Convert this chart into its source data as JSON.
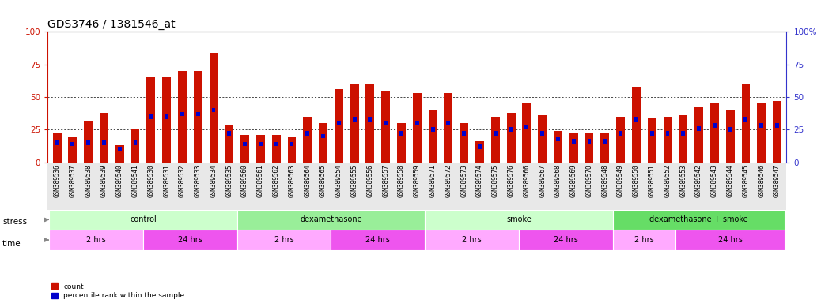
{
  "title": "GDS3746 / 1381546_at",
  "samples": [
    "GSM389536",
    "GSM389537",
    "GSM389538",
    "GSM389539",
    "GSM389540",
    "GSM389541",
    "GSM389530",
    "GSM389531",
    "GSM389532",
    "GSM389533",
    "GSM389534",
    "GSM389535",
    "GSM389560",
    "GSM389561",
    "GSM389562",
    "GSM389563",
    "GSM389564",
    "GSM389565",
    "GSM389554",
    "GSM389555",
    "GSM389556",
    "GSM389557",
    "GSM389558",
    "GSM389559",
    "GSM389571",
    "GSM389572",
    "GSM389573",
    "GSM389574",
    "GSM389575",
    "GSM389576",
    "GSM389566",
    "GSM389567",
    "GSM389568",
    "GSM389569",
    "GSM389570",
    "GSM389548",
    "GSM389549",
    "GSM389550",
    "GSM389551",
    "GSM389552",
    "GSM389553",
    "GSM389542",
    "GSM389543",
    "GSM389544",
    "GSM389545",
    "GSM389546",
    "GSM389547"
  ],
  "count_values": [
    22,
    20,
    32,
    38,
    13,
    26,
    65,
    65,
    70,
    70,
    84,
    29,
    21,
    21,
    21,
    20,
    35,
    30,
    56,
    60,
    60,
    55,
    30,
    53,
    40,
    53,
    30,
    16,
    35,
    38,
    45,
    36,
    24,
    22,
    22,
    22,
    35,
    58,
    34,
    35,
    36,
    42,
    46,
    40,
    60,
    46,
    47
  ],
  "percentile_values": [
    15,
    14,
    15,
    15,
    10,
    15,
    35,
    35,
    37,
    37,
    40,
    22,
    14,
    14,
    14,
    14,
    22,
    20,
    30,
    33,
    33,
    30,
    22,
    30,
    25,
    30,
    22,
    12,
    22,
    25,
    27,
    22,
    18,
    16,
    16,
    16,
    22,
    33,
    22,
    22,
    22,
    26,
    28,
    25,
    33,
    28,
    28
  ],
  "bar_color": "#cc1100",
  "percentile_color": "#0000cc",
  "background_color": "#ffffff",
  "ylim": [
    0,
    100
  ],
  "yticks": [
    0,
    25,
    50,
    75,
    100
  ],
  "stress_groups": [
    {
      "label": "control",
      "start": 0,
      "end": 12,
      "color": "#ccffcc"
    },
    {
      "label": "dexamethasone",
      "start": 12,
      "end": 24,
      "color": "#99ee99"
    },
    {
      "label": "smoke",
      "start": 24,
      "end": 36,
      "color": "#ccffcc"
    },
    {
      "label": "dexamethasone + smoke",
      "start": 36,
      "end": 47,
      "color": "#66dd66"
    }
  ],
  "time_groups": [
    {
      "label": "2 hrs",
      "start": 0,
      "end": 6,
      "color": "#ffaaff"
    },
    {
      "label": "24 hrs",
      "start": 6,
      "end": 12,
      "color": "#ee55ee"
    },
    {
      "label": "2 hrs",
      "start": 12,
      "end": 18,
      "color": "#ffaaff"
    },
    {
      "label": "24 hrs",
      "start": 18,
      "end": 24,
      "color": "#ee55ee"
    },
    {
      "label": "2 hrs",
      "start": 24,
      "end": 30,
      "color": "#ffaaff"
    },
    {
      "label": "24 hrs",
      "start": 30,
      "end": 36,
      "color": "#ee55ee"
    },
    {
      "label": "2 hrs",
      "start": 36,
      "end": 40,
      "color": "#ffaaff"
    },
    {
      "label": "24 hrs",
      "start": 40,
      "end": 47,
      "color": "#ee55ee"
    }
  ],
  "left_yaxis_color": "#cc1100",
  "right_yaxis_color": "#3333cc",
  "title_fontsize": 10,
  "tick_fontsize": 5.5,
  "label_fontsize": 7.5,
  "bar_width": 0.55
}
